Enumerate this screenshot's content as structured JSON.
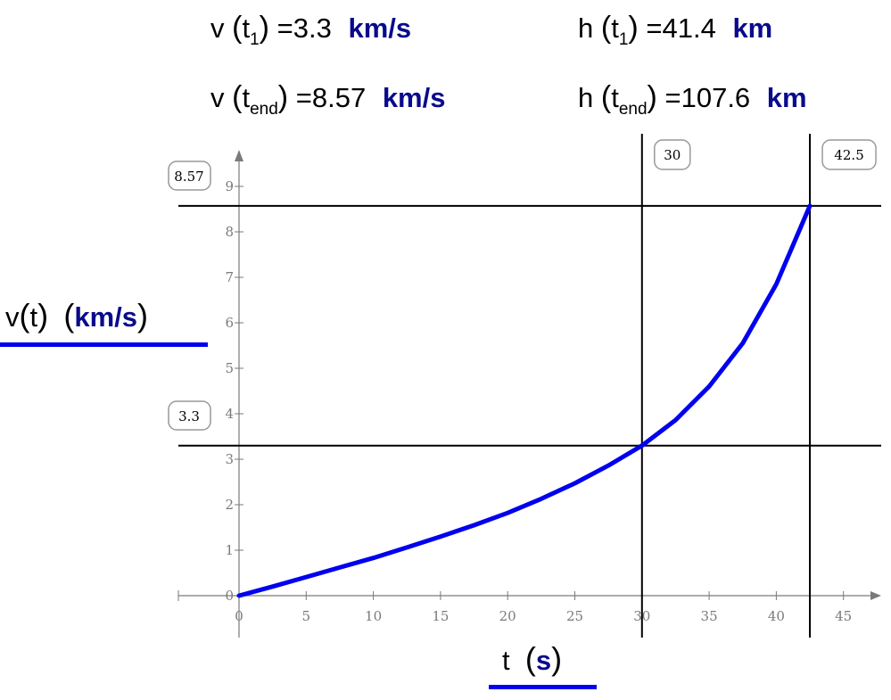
{
  "equations": [
    {
      "id": "eq-v1",
      "fn": "v",
      "arg": "t",
      "sub": "1",
      "value": "3.3",
      "unit": "km/s"
    },
    {
      "id": "eq-h1",
      "fn": "h",
      "arg": "t",
      "sub": "1",
      "value": "41.4",
      "unit": "km"
    },
    {
      "id": "eq-v2",
      "fn": "v",
      "arg": "t",
      "sub": "end",
      "value": "8.57",
      "unit": "km/s"
    },
    {
      "id": "eq-h2",
      "fn": "h",
      "arg": "t",
      "sub": "end",
      "value": "107.6",
      "unit": "km"
    }
  ],
  "axes": {
    "y_label_fn": "v",
    "y_label_arg": "t",
    "y_label_unit": "km/s",
    "x_label_var": "t",
    "x_label_unit": "s"
  },
  "colors": {
    "curve": "#0000ee",
    "axis": "#7a7a7a",
    "marker": "#000000",
    "unit": "#0a0a8c"
  },
  "chart_data": {
    "type": "line",
    "xlim": [
      0,
      47
    ],
    "ylim": [
      0,
      9.5
    ],
    "x_ticks": [
      0,
      5,
      10,
      15,
      20,
      25,
      30,
      35,
      40,
      45
    ],
    "y_ticks": [
      0,
      1,
      2,
      3,
      4,
      5,
      6,
      7,
      8,
      9
    ],
    "grid": false,
    "series": [
      {
        "x": [
          0,
          2.5,
          5,
          7.5,
          10,
          12.5,
          15,
          17.5,
          20,
          22.5,
          25,
          27.5,
          30,
          32.5,
          35,
          37.5,
          40,
          42.5
        ],
        "y": [
          0,
          0.2,
          0.41,
          0.62,
          0.83,
          1.06,
          1.3,
          1.55,
          1.82,
          2.13,
          2.47,
          2.86,
          3.3,
          3.86,
          4.6,
          5.55,
          6.85,
          8.57
        ]
      }
    ],
    "markers": {
      "horizontal": [
        {
          "value": 8.57,
          "label": "8.57"
        },
        {
          "value": 3.3,
          "label": "3.3"
        }
      ],
      "vertical": [
        {
          "value": 30,
          "label": "30"
        },
        {
          "value": 42.5,
          "label": "42.5"
        }
      ]
    }
  }
}
